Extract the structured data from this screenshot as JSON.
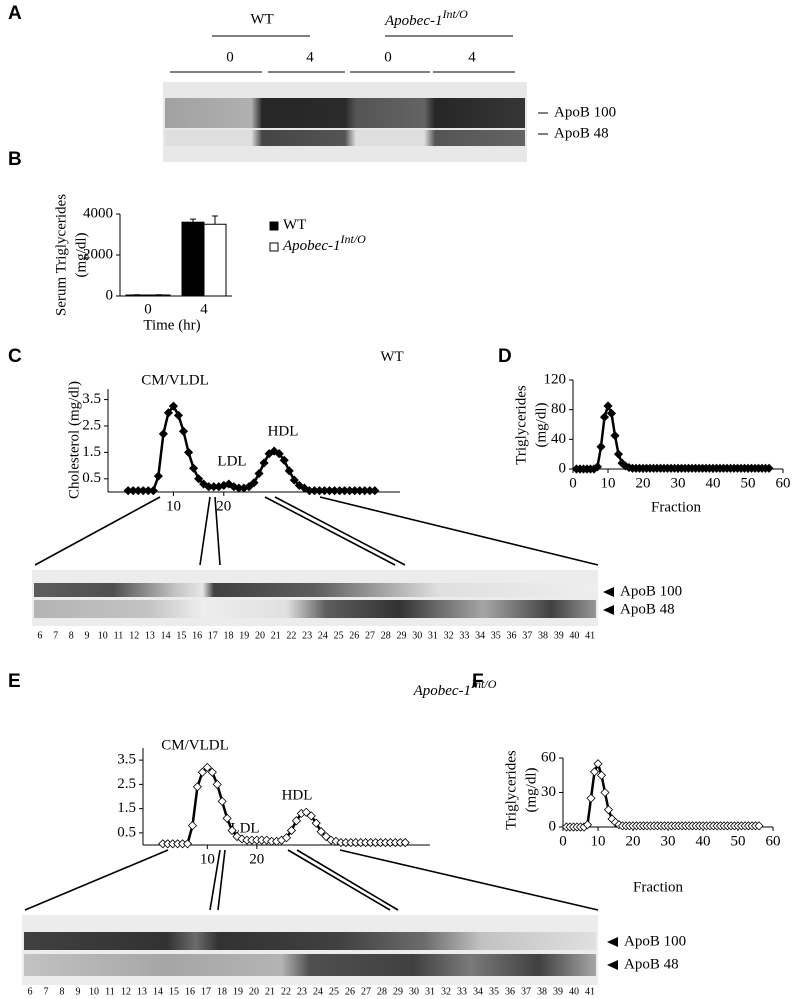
{
  "panels": [
    "A",
    "B",
    "C",
    "D",
    "E",
    "F"
  ],
  "blot_a": {
    "groups": [
      {
        "label": "WT"
      },
      {
        "label": "Apobec-1",
        "sup": "Int/O"
      }
    ],
    "times": [
      "0",
      "4",
      "0",
      "4"
    ],
    "bands": [
      "ApoB 100",
      "ApoB 48"
    ]
  },
  "chart_data": [
    {
      "type": "bar",
      "y_label": [
        "Serum Triglycerides",
        "(mg/dl)"
      ],
      "x_label": "Time (hr)",
      "categories": [
        "0",
        "4"
      ],
      "series": [
        {
          "name": "WT",
          "color": "#000000",
          "values": [
            50,
            3600
          ],
          "errors": [
            10,
            150
          ]
        },
        {
          "name": "Apobec-1",
          "name_sup": "Int/O",
          "color": "#ffffff",
          "values": [
            50,
            3500
          ],
          "errors": [
            10,
            400
          ]
        }
      ],
      "ylim": [
        0,
        4000
      ],
      "yticks": [
        0,
        2000,
        4000
      ]
    },
    {
      "type": "line",
      "title": "WT",
      "y_label": [
        "Cholesterol (mg/dl)"
      ],
      "annotations": [
        "CM/VLDL",
        "LDL",
        "HDL"
      ],
      "x": [
        1,
        2,
        3,
        4,
        5,
        6,
        7,
        8,
        9,
        10,
        11,
        12,
        13,
        14,
        15,
        16,
        17,
        18,
        19,
        20,
        21,
        22,
        23,
        24,
        25,
        26,
        27,
        28,
        29,
        30,
        31,
        32,
        33,
        34,
        35,
        36,
        37,
        38,
        39,
        40,
        41,
        42,
        43,
        44,
        45,
        46,
        47,
        48,
        49,
        50
      ],
      "series": [
        {
          "color": "#000000",
          "marker_fill": "#000000",
          "values": [
            0.05,
            0.05,
            0.05,
            0.05,
            0.05,
            0.05,
            0.6,
            2.2,
            3.0,
            3.25,
            2.9,
            2.3,
            1.5,
            0.9,
            0.5,
            0.3,
            0.2,
            0.2,
            0.2,
            0.25,
            0.3,
            0.2,
            0.15,
            0.15,
            0.2,
            0.35,
            0.7,
            1.1,
            1.45,
            1.55,
            1.45,
            1.2,
            0.8,
            0.45,
            0.25,
            0.15,
            0.05,
            0.05,
            0.05,
            0.05,
            0.05,
            0.05,
            0.05,
            0.05,
            0.05,
            0.05,
            0.05,
            0.05,
            0.05,
            0.05
          ]
        }
      ],
      "xlim": [
        -3,
        55
      ],
      "xticks": [
        10,
        20
      ],
      "ylim": [
        0,
        3.9
      ],
      "yticks": [
        0.5,
        1.5,
        2.5,
        3.5
      ]
    },
    {
      "type": "line",
      "y_label": [
        "Triglycerides",
        "(mg/dl)"
      ],
      "x_label": "Fraction",
      "x": [
        1,
        2,
        3,
        4,
        5,
        6,
        7,
        8,
        9,
        10,
        11,
        12,
        13,
        14,
        15,
        16,
        17,
        18,
        19,
        20,
        21,
        22,
        23,
        24,
        25,
        26,
        27,
        28,
        29,
        30,
        31,
        32,
        33,
        34,
        35,
        36,
        37,
        38,
        39,
        40,
        41,
        42,
        43,
        44,
        45,
        46,
        47,
        48,
        49,
        50,
        51,
        52,
        53,
        54,
        55,
        56
      ],
      "series": [
        {
          "color": "#000000",
          "marker_fill": "#000000",
          "values": [
            0,
            0,
            0,
            0,
            0,
            0,
            3,
            30,
            70,
            85,
            75,
            45,
            20,
            8,
            4,
            2,
            1,
            1,
            1,
            1,
            1,
            1,
            1,
            1,
            1,
            1,
            1,
            1,
            1,
            1,
            1,
            1,
            1,
            1,
            1,
            1,
            1,
            1,
            1,
            1,
            1,
            1,
            1,
            1,
            1,
            1,
            1,
            1,
            1,
            1,
            1,
            1,
            1,
            1,
            1,
            1
          ]
        }
      ],
      "xlim": [
        0,
        60
      ],
      "xticks": [
        0,
        10,
        20,
        30,
        40,
        50,
        60
      ],
      "ylim": [
        0,
        120
      ],
      "yticks": [
        0,
        40,
        80,
        120
      ]
    },
    {
      "type": "line",
      "title": "Apobec-1",
      "title_sup": "Int/O",
      "annotations": [
        "CM/VLDL",
        "LDL",
        "HDL"
      ],
      "x": [
        1,
        2,
        3,
        4,
        5,
        6,
        7,
        8,
        9,
        10,
        11,
        12,
        13,
        14,
        15,
        16,
        17,
        18,
        19,
        20,
        21,
        22,
        23,
        24,
        25,
        26,
        27,
        28,
        29,
        30,
        31,
        32,
        33,
        34,
        35,
        36,
        37,
        38,
        39,
        40,
        41,
        42,
        43,
        44,
        45,
        46,
        47,
        48,
        49,
        50
      ],
      "series": [
        {
          "color": "#000000",
          "marker_fill": "#ffffff",
          "values": [
            0.05,
            0.05,
            0.05,
            0.05,
            0.05,
            0.05,
            0.8,
            2.4,
            3.0,
            3.2,
            3.0,
            2.5,
            1.8,
            1.1,
            0.6,
            0.35,
            0.25,
            0.2,
            0.2,
            0.2,
            0.2,
            0.2,
            0.15,
            0.15,
            0.2,
            0.3,
            0.6,
            1.0,
            1.3,
            1.35,
            1.2,
            0.9,
            0.55,
            0.35,
            0.2,
            0.15,
            0.1,
            0.1,
            0.1,
            0.1,
            0.1,
            0.1,
            0.1,
            0.1,
            0.1,
            0.1,
            0.1,
            0.1,
            0.1,
            0.1
          ]
        }
      ],
      "xlim": [
        -3,
        55
      ],
      "xticks": [
        10,
        20
      ],
      "ylim": [
        0,
        4
      ],
      "yticks": [
        0.5,
        1.5,
        2.5,
        3.5
      ]
    },
    {
      "type": "line",
      "y_label": [
        "Triglycerides",
        "(mg/dl)"
      ],
      "x_label": "Fraction",
      "x": [
        1,
        2,
        3,
        4,
        5,
        6,
        7,
        8,
        9,
        10,
        11,
        12,
        13,
        14,
        15,
        16,
        17,
        18,
        19,
        20,
        21,
        22,
        23,
        24,
        25,
        26,
        27,
        28,
        29,
        30,
        31,
        32,
        33,
        34,
        35,
        36,
        37,
        38,
        39,
        40,
        41,
        42,
        43,
        44,
        45,
        46,
        47,
        48,
        49,
        50,
        51,
        52,
        53,
        54,
        55,
        56
      ],
      "series": [
        {
          "color": "#000000",
          "marker_fill": "#ffffff",
          "values": [
            0,
            0,
            0,
            0,
            0,
            0,
            2,
            25,
            48,
            55,
            45,
            30,
            15,
            7,
            4,
            2,
            1,
            1,
            1,
            1,
            1,
            1,
            1,
            1,
            1,
            1,
            1,
            1,
            1,
            1,
            1,
            1,
            1,
            1,
            1,
            1,
            1,
            1,
            1,
            1,
            1,
            1,
            1,
            1,
            1,
            1,
            1,
            1,
            1,
            1,
            1,
            1,
            1,
            1,
            1,
            1
          ]
        }
      ],
      "xlim": [
        0,
        60
      ],
      "xticks": [
        0,
        10,
        20,
        30,
        40,
        50,
        60
      ],
      "ylim": [
        0,
        60
      ],
      "yticks": [
        0,
        30,
        60
      ]
    }
  ],
  "blot_c": {
    "lanes": [
      6,
      7,
      8,
      9,
      10,
      11,
      12,
      13,
      14,
      15,
      16,
      17,
      18,
      19,
      20,
      21,
      22,
      23,
      24,
      25,
      26,
      27,
      28,
      29,
      30,
      31,
      32,
      33,
      34,
      35,
      36,
      37,
      38,
      39,
      40,
      41
    ],
    "bands": [
      "ApoB 100",
      "ApoB 48"
    ]
  },
  "blot_e": {
    "lanes": [
      6,
      7,
      8,
      9,
      10,
      11,
      12,
      13,
      14,
      15,
      16,
      17,
      18,
      19,
      20,
      21,
      22,
      23,
      24,
      25,
      26,
      27,
      28,
      29,
      30,
      31,
      32,
      33,
      34,
      35,
      36,
      37,
      38,
      39,
      40,
      41
    ],
    "bands": [
      "ApoB 100",
      "ApoB 48"
    ]
  }
}
